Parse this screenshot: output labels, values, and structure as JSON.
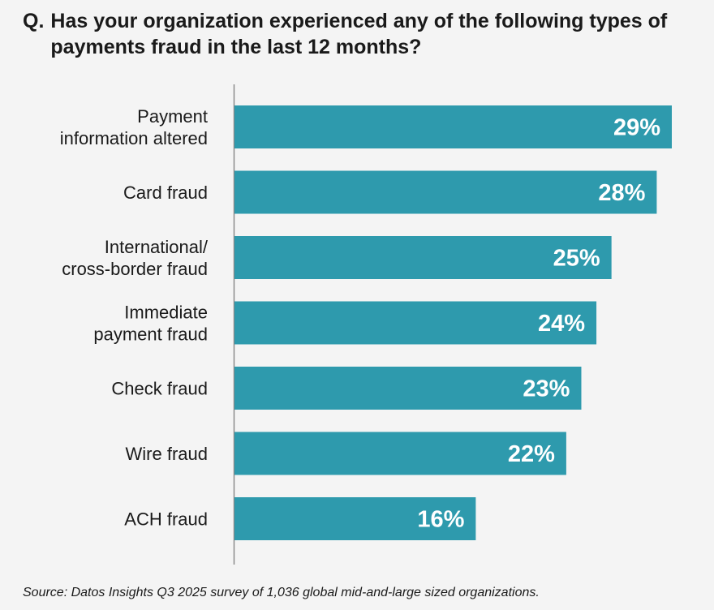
{
  "question": {
    "prefix": "Q.",
    "text": "Has your organization experienced any of the following types of payments fraud in the last 12 months?"
  },
  "chart_data": {
    "type": "bar",
    "orientation": "horizontal",
    "categories": [
      [
        "Payment",
        "information altered"
      ],
      [
        "Card fraud"
      ],
      [
        "International/",
        "cross-border fraud"
      ],
      [
        "Immediate",
        "payment fraud"
      ],
      [
        "Check fraud"
      ],
      [
        "Wire fraud"
      ],
      [
        "ACH fraud"
      ]
    ],
    "values": [
      29,
      28,
      25,
      24,
      23,
      22,
      16
    ],
    "value_labels": [
      "29%",
      "28%",
      "25%",
      "24%",
      "23%",
      "22%",
      "16%"
    ],
    "bar_color": "#2e9aad",
    "xlim": [
      0,
      29
    ],
    "grid": false,
    "legend": "none"
  },
  "source": "Source: Datos Insights Q3 2025 survey of 1,036 global mid-and-large sized organizations."
}
